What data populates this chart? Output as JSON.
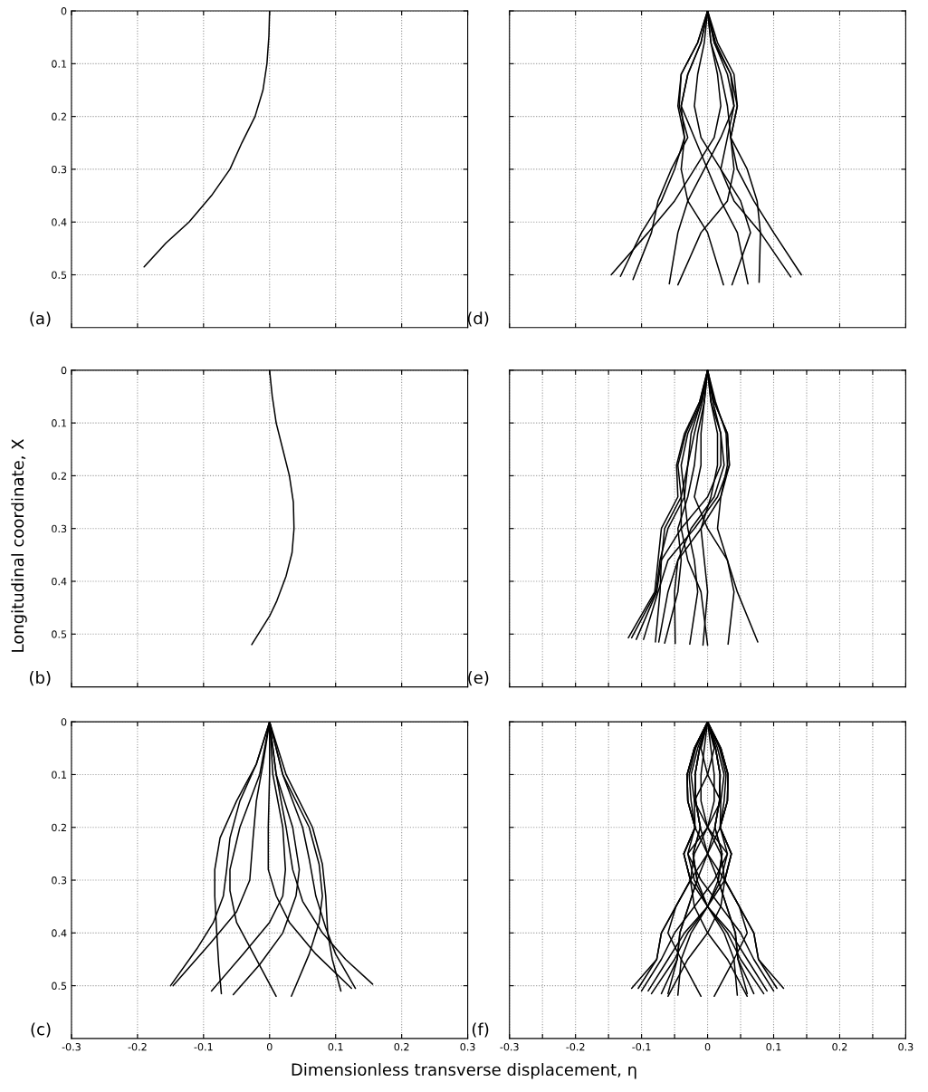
{
  "chart_data": [
    {
      "type": "line",
      "ylabel": null,
      "annotations": [
        "(a)"
      ],
      "xlim": [
        -0.3,
        0.3
      ],
      "ylim": [
        0.6,
        0
      ],
      "xticks": [
        -0.3,
        -0.2,
        -0.1,
        0,
        0.1,
        0.2,
        0.3
      ],
      "yticks": [
        0,
        0.1,
        0.2,
        0.3,
        0.4,
        0.5
      ],
      "grid": true,
      "tick_labels": "y",
      "series": [
        {
          "color": "#000000",
          "x": [
            0,
            -0.001,
            -0.004,
            -0.01,
            -0.022,
            -0.042,
            -0.06,
            -0.088,
            -0.122,
            -0.157,
            -0.19
          ],
          "values": [
            0,
            0.047,
            0.1,
            0.15,
            0.2,
            0.25,
            0.3,
            0.35,
            0.4,
            0.44,
            0.485
          ]
        }
      ]
    },
    {
      "type": "line",
      "annotations": [
        "(d)"
      ],
      "xlim": [
        -0.3,
        0.3
      ],
      "ylim": [
        0.6,
        0
      ],
      "xticks": [
        -0.3,
        -0.2,
        -0.1,
        0,
        0.1,
        0.2,
        0.3
      ],
      "yticks": [
        0,
        0.1,
        0.2,
        0.3,
        0.4,
        0.5
      ],
      "grid": true,
      "tick_labels": false,
      "series": [
        {
          "color": "#000000",
          "x": [
            0,
            0.005,
            0.015,
            0.02,
            0.01,
            -0.02,
            -0.05,
            -0.09,
            -0.146
          ],
          "values": [
            0,
            0.06,
            0.12,
            0.18,
            0.24,
            0.3,
            0.36,
            0.42,
            0.5
          ]
        },
        {
          "color": "#000000",
          "x": [
            0,
            -0.01,
            -0.03,
            -0.04,
            -0.035,
            -0.05,
            -0.07,
            -0.1,
            -0.132
          ],
          "values": [
            0,
            0.06,
            0.12,
            0.18,
            0.24,
            0.3,
            0.36,
            0.42,
            0.503
          ]
        },
        {
          "color": "#000000",
          "x": [
            0,
            -0.015,
            -0.04,
            -0.043,
            -0.03,
            -0.055,
            -0.075,
            -0.085,
            -0.113
          ],
          "values": [
            0,
            0.06,
            0.12,
            0.18,
            0.24,
            0.3,
            0.36,
            0.42,
            0.509
          ]
        },
        {
          "color": "#000000",
          "x": [
            0,
            0.01,
            0.035,
            0.04,
            0.02,
            -0.005,
            -0.03,
            -0.045,
            -0.058
          ],
          "values": [
            0,
            0.06,
            0.12,
            0.18,
            0.24,
            0.3,
            0.36,
            0.42,
            0.517
          ]
        },
        {
          "color": "#000000",
          "x": [
            0,
            0.015,
            0.04,
            0.045,
            0.035,
            0.04,
            0.03,
            -0.01,
            -0.045
          ],
          "values": [
            0,
            0.06,
            0.12,
            0.18,
            0.24,
            0.3,
            0.36,
            0.42,
            0.519
          ]
        },
        {
          "color": "#000000",
          "x": [
            0,
            -0.015,
            -0.04,
            -0.045,
            -0.035,
            -0.04,
            -0.03,
            0.0,
            0.024
          ],
          "values": [
            0,
            0.06,
            0.12,
            0.18,
            0.24,
            0.3,
            0.36,
            0.42,
            0.519
          ]
        },
        {
          "color": "#000000",
          "x": [
            0,
            -0.005,
            -0.015,
            -0.02,
            -0.01,
            0.02,
            0.05,
            0.065,
            0.037
          ],
          "values": [
            0,
            0.06,
            0.12,
            0.18,
            0.24,
            0.3,
            0.36,
            0.42,
            0.519
          ]
        },
        {
          "color": "#000000",
          "x": [
            0,
            -0.01,
            -0.03,
            -0.04,
            -0.02,
            0.0,
            0.02,
            0.045,
            0.061
          ],
          "values": [
            0,
            0.06,
            0.12,
            0.18,
            0.24,
            0.3,
            0.36,
            0.42,
            0.517
          ]
        },
        {
          "color": "#000000",
          "x": [
            0,
            0.005,
            0.02,
            0.03,
            0.035,
            0.06,
            0.075,
            0.08,
            0.078
          ],
          "values": [
            0,
            0.06,
            0.12,
            0.18,
            0.24,
            0.3,
            0.36,
            0.42,
            0.514
          ]
        },
        {
          "color": "#000000",
          "x": [
            0,
            0.01,
            0.03,
            0.04,
            0.03,
            0.02,
            0.04,
            0.08,
            0.126
          ],
          "values": [
            0,
            0.06,
            0.12,
            0.18,
            0.24,
            0.3,
            0.36,
            0.42,
            0.504
          ]
        },
        {
          "color": "#000000",
          "x": [
            0,
            0.012,
            0.035,
            0.045,
            0.035,
            0.045,
            0.07,
            0.1,
            0.142
          ],
          "values": [
            0,
            0.06,
            0.12,
            0.18,
            0.24,
            0.3,
            0.36,
            0.42,
            0.5
          ]
        }
      ]
    },
    {
      "type": "line",
      "ylabel": "Longitudinal coordinate, X",
      "annotations": [
        "(b)"
      ],
      "xlim": [
        -0.3,
        0.3
      ],
      "ylim": [
        0.6,
        0
      ],
      "xticks": [
        -0.3,
        -0.2,
        -0.1,
        0,
        0.1,
        0.2,
        0.3
      ],
      "yticks": [
        0,
        0.1,
        0.2,
        0.3,
        0.4,
        0.5
      ],
      "grid": true,
      "tick_labels": "y",
      "series": [
        {
          "color": "#000000",
          "x": [
            0,
            0.004,
            0.01,
            0.02,
            0.03,
            0.036,
            0.037,
            0.034,
            0.025,
            0.011,
            0,
            -0.027
          ],
          "values": [
            0,
            0.049,
            0.1,
            0.15,
            0.2,
            0.25,
            0.3,
            0.346,
            0.39,
            0.437,
            0.466,
            0.52
          ]
        }
      ]
    },
    {
      "type": "line",
      "annotations": [
        "(e)"
      ],
      "xlim": [
        -0.3,
        0.3
      ],
      "ylim": [
        0.6,
        0
      ],
      "xticks": [
        -0.3,
        -0.25,
        -0.2,
        -0.15,
        -0.1,
        -0.05,
        0,
        0.05,
        0.1,
        0.15,
        0.2,
        0.25,
        0.3
      ],
      "yticks": [
        0,
        0.1,
        0.2,
        0.3,
        0.4,
        0.5
      ],
      "grid": true,
      "tick_labels": false,
      "series": [
        {
          "color": "#000000",
          "x": [
            0,
            -0.012,
            -0.035,
            -0.047,
            -0.045,
            -0.07,
            -0.075,
            -0.08,
            -0.12
          ],
          "values": [
            0,
            0.06,
            0.12,
            0.18,
            0.24,
            0.3,
            0.36,
            0.42,
            0.507
          ]
        },
        {
          "color": "#000000",
          "x": [
            0,
            -0.01,
            -0.03,
            -0.04,
            -0.035,
            -0.06,
            -0.072,
            -0.078,
            -0.115
          ],
          "values": [
            0,
            0.06,
            0.12,
            0.18,
            0.24,
            0.3,
            0.36,
            0.42,
            0.507
          ]
        },
        {
          "color": "#000000",
          "x": [
            0,
            0.005,
            0.02,
            0.02,
            0.0,
            -0.04,
            -0.07,
            -0.077,
            -0.108
          ],
          "values": [
            0,
            0.06,
            0.12,
            0.18,
            0.24,
            0.3,
            0.36,
            0.42,
            0.51
          ]
        },
        {
          "color": "#000000",
          "x": [
            0,
            0.01,
            0.03,
            0.033,
            0.015,
            -0.02,
            -0.06,
            -0.075,
            -0.097
          ],
          "values": [
            0,
            0.06,
            0.12,
            0.18,
            0.24,
            0.3,
            0.36,
            0.42,
            0.51
          ]
        },
        {
          "color": "#000000",
          "x": [
            0,
            -0.012,
            -0.033,
            -0.045,
            -0.04,
            -0.065,
            -0.07,
            -0.072,
            -0.079
          ],
          "values": [
            0,
            0.06,
            0.12,
            0.18,
            0.24,
            0.3,
            0.36,
            0.42,
            0.515
          ]
        },
        {
          "color": "#000000",
          "x": [
            0,
            0.012,
            0.028,
            0.03,
            0.02,
            -0.01,
            -0.045,
            -0.06,
            -0.074
          ],
          "values": [
            0,
            0.06,
            0.12,
            0.18,
            0.24,
            0.3,
            0.36,
            0.42,
            0.515
          ]
        },
        {
          "color": "#000000",
          "x": [
            0,
            -0.005,
            -0.015,
            -0.02,
            -0.03,
            -0.045,
            -0.04,
            -0.045,
            -0.065
          ],
          "values": [
            0,
            0.06,
            0.12,
            0.18,
            0.24,
            0.3,
            0.36,
            0.42,
            0.517
          ]
        },
        {
          "color": "#000000",
          "x": [
            0,
            0.008,
            0.02,
            0.025,
            0.01,
            -0.025,
            -0.045,
            -0.05,
            -0.049
          ],
          "values": [
            0,
            0.06,
            0.12,
            0.18,
            0.24,
            0.3,
            0.36,
            0.42,
            0.518
          ]
        },
        {
          "color": "#000000",
          "x": [
            0,
            -0.01,
            -0.025,
            -0.03,
            -0.035,
            -0.03,
            -0.02,
            -0.015,
            -0.027
          ],
          "values": [
            0,
            0.06,
            0.12,
            0.18,
            0.24,
            0.3,
            0.36,
            0.42,
            0.519
          ]
        },
        {
          "color": "#000000",
          "x": [
            0,
            0.005,
            0.015,
            0.015,
            0.005,
            -0.01,
            -0.005,
            0.0,
            -0.007
          ],
          "values": [
            0,
            0.06,
            0.12,
            0.18,
            0.24,
            0.3,
            0.36,
            0.42,
            0.521
          ]
        },
        {
          "color": "#000000",
          "x": [
            0,
            -0.008,
            -0.02,
            -0.03,
            -0.04,
            -0.04,
            -0.03,
            -0.01,
            0.0
          ],
          "values": [
            0,
            0.06,
            0.12,
            0.18,
            0.24,
            0.3,
            0.36,
            0.42,
            0.521
          ]
        },
        {
          "color": "#000000",
          "x": [
            0,
            0.01,
            0.03,
            0.033,
            0.02,
            0.015,
            0.03,
            0.04,
            0.031
          ],
          "values": [
            0,
            0.06,
            0.12,
            0.18,
            0.24,
            0.3,
            0.36,
            0.42,
            0.519
          ]
        },
        {
          "color": "#000000",
          "x": [
            0,
            -0.005,
            -0.01,
            -0.01,
            -0.02,
            0.0,
            0.03,
            0.045,
            0.076
          ],
          "values": [
            0,
            0.06,
            0.12,
            0.18,
            0.24,
            0.3,
            0.36,
            0.42,
            0.515
          ]
        }
      ]
    },
    {
      "type": "line",
      "xlabel": "Dimensionless transverse displacement, η",
      "annotations": [
        "(c)"
      ],
      "xlim": [
        -0.3,
        0.3
      ],
      "ylim": [
        0.6,
        0
      ],
      "xticks": [
        -0.3,
        -0.2,
        -0.1,
        0,
        0.1,
        0.2,
        0.3
      ],
      "yticks": [
        0,
        0.1,
        0.2,
        0.3,
        0.4,
        0.5
      ],
      "grid": true,
      "series": [
        {
          "color": "#000000",
          "x": [
            0,
            -0.02,
            -0.05,
            -0.075,
            -0.083,
            -0.083,
            -0.08,
            -0.077,
            -0.073
          ],
          "values": [
            0,
            0.08,
            0.15,
            0.22,
            0.28,
            0.33,
            0.4,
            0.46,
            0.515
          ]
        },
        {
          "color": "#000000",
          "x": [
            0,
            -0.02,
            -0.045,
            -0.06,
            -0.065,
            -0.07,
            -0.085,
            -0.11,
            -0.15
          ],
          "values": [
            0,
            0.08,
            0.15,
            0.22,
            0.28,
            0.33,
            0.38,
            0.43,
            0.5
          ]
        },
        {
          "color": "#000000",
          "x": [
            0,
            -0.01,
            -0.02,
            -0.025,
            -0.03,
            -0.05,
            -0.09,
            -0.146
          ],
          "values": [
            0,
            0.08,
            0.15,
            0.22,
            0.3,
            0.36,
            0.42,
            0.5
          ]
        },
        {
          "color": "#000000",
          "x": [
            0,
            0.005,
            0.02,
            0.024,
            0.02,
            0.0,
            -0.04,
            -0.088
          ],
          "values": [
            0,
            0.1,
            0.2,
            0.28,
            0.33,
            0.38,
            0.44,
            0.51
          ]
        },
        {
          "color": "#000000",
          "x": [
            0,
            0.01,
            0.035,
            0.045,
            0.04,
            0.02,
            -0.015,
            -0.055
          ],
          "values": [
            0,
            0.1,
            0.2,
            0.28,
            0.33,
            0.4,
            0.46,
            0.517
          ]
        },
        {
          "color": "#000000",
          "x": [
            0,
            -0.015,
            -0.045,
            -0.06,
            -0.06,
            -0.05,
            -0.02,
            0.01
          ],
          "values": [
            0,
            0.1,
            0.2,
            0.28,
            0.32,
            0.38,
            0.45,
            0.52
          ]
        },
        {
          "color": "#000000",
          "x": [
            0,
            0.02,
            0.06,
            0.075,
            0.08,
            0.075,
            0.06,
            0.033
          ],
          "values": [
            0,
            0.1,
            0.2,
            0.27,
            0.33,
            0.38,
            0.44,
            0.52
          ]
        },
        {
          "color": "#000000",
          "x": [
            0,
            0.025,
            0.065,
            0.08,
            0.085,
            0.088,
            0.095,
            0.108
          ],
          "values": [
            0,
            0.1,
            0.2,
            0.27,
            0.33,
            0.4,
            0.45,
            0.51
          ]
        },
        {
          "color": "#000000",
          "x": [
            0,
            0,
            -0.002,
            -0.002,
            0.01,
            0.03,
            0.07,
            0.124
          ],
          "values": [
            0,
            0.1,
            0.2,
            0.28,
            0.33,
            0.38,
            0.44,
            0.505
          ]
        },
        {
          "color": "#000000",
          "x": [
            0,
            0.02,
            0.05,
            0.06,
            0.07,
            0.085,
            0.1,
            0.13
          ],
          "values": [
            0,
            0.1,
            0.2,
            0.26,
            0.33,
            0.39,
            0.44,
            0.505
          ]
        },
        {
          "color": "#000000",
          "x": [
            0,
            0.01,
            0.025,
            0.035,
            0.05,
            0.08,
            0.115,
            0.156
          ],
          "values": [
            0,
            0.1,
            0.2,
            0.28,
            0.34,
            0.4,
            0.45,
            0.497
          ]
        }
      ]
    },
    {
      "type": "line",
      "annotations": [
        "(f)"
      ],
      "xlim": [
        -0.3,
        0.3
      ],
      "ylim": [
        0.6,
        0
      ],
      "xticks": [
        -0.3,
        {
          "value": -0.25,
          "label": null
        },
        -0.2,
        {
          "value": -0.15,
          "label": null
        },
        -0.1,
        {
          "value": -0.05,
          "label": null
        },
        0,
        {
          "value": 0.05,
          "label": null
        },
        0.1,
        {
          "value": 0.15,
          "label": null
        },
        0.2,
        {
          "value": 0.25,
          "label": null
        },
        0.3
      ],
      "yticks": [
        0,
        0.1,
        0.2,
        0.3,
        0.4,
        0.5
      ],
      "grid": true,
      "tick_labels": "x",
      "series": [
        {
          "color": "#000000",
          "x": [
            0,
            0.02,
            0.031,
            0.03,
            0.019,
            0.036,
            0.026,
            0.048,
            0.07,
            0.077,
            0.115
          ],
          "values": [
            0,
            0.05,
            0.1,
            0.15,
            0.2,
            0.25,
            0.3,
            0.35,
            0.4,
            0.45,
            0.505
          ]
        },
        {
          "color": "#000000",
          "x": [
            0,
            0.012,
            0.019,
            0.018,
            0.011,
            0.022,
            0.016,
            0.029,
            0.042,
            0.046,
            0.07
          ],
          "values": [
            0,
            0.05,
            0.1,
            0.15,
            0.2,
            0.25,
            0.3,
            0.35,
            0.4,
            0.45,
            0.515
          ]
        },
        {
          "color": "#000000",
          "x": [
            0,
            0.02,
            0.031,
            0.03,
            0.019,
            0,
            -0.026,
            -0.048,
            -0.07,
            -0.077,
            -0.105
          ],
          "values": [
            0,
            0.05,
            0.1,
            0.15,
            0.2,
            0.25,
            0.3,
            0.35,
            0.4,
            0.45,
            0.505
          ]
        },
        {
          "color": "#000000",
          "x": [
            0,
            0.012,
            0.019,
            0.018,
            0.011,
            0,
            -0.016,
            -0.029,
            -0.042,
            -0.046,
            -0.06
          ],
          "values": [
            0,
            0.05,
            0.1,
            0.15,
            0.2,
            0.25,
            0.3,
            0.35,
            0.4,
            0.45,
            0.515
          ]
        },
        {
          "color": "#000000",
          "x": [
            0,
            0.02,
            0.031,
            0.03,
            0.019,
            0.036,
            0.026,
            0.0,
            -0.035,
            -0.06,
            -0.09
          ],
          "values": [
            0,
            0.05,
            0.1,
            0.15,
            0.2,
            0.25,
            0.3,
            0.35,
            0.4,
            0.45,
            0.51
          ]
        },
        {
          "color": "#000000",
          "x": [
            0,
            0.012,
            0.019,
            0.018,
            0.011,
            0.022,
            0.016,
            0.0,
            -0.025,
            -0.04,
            -0.045
          ],
          "values": [
            0,
            0.05,
            0.1,
            0.15,
            0.2,
            0.25,
            0.3,
            0.35,
            0.4,
            0.45,
            0.518
          ]
        },
        {
          "color": "#000000",
          "x": [
            0,
            0.01,
            0.0,
            -0.02,
            -0.019,
            -0.036,
            -0.026,
            -0.048,
            -0.06,
            -0.04,
            -0.01
          ],
          "values": [
            0,
            0.05,
            0.1,
            0.15,
            0.2,
            0.25,
            0.3,
            0.35,
            0.4,
            0.45,
            0.52
          ]
        },
        {
          "color": "#000000",
          "x": [
            0,
            0.005,
            0.01,
            0.01,
            0.0,
            -0.02,
            -0.026,
            -0.02,
            0.0,
            0.03,
            0.06
          ],
          "values": [
            0,
            0.05,
            0.1,
            0.15,
            0.2,
            0.25,
            0.3,
            0.35,
            0.4,
            0.45,
            0.52
          ]
        },
        {
          "color": "#000000",
          "x": [
            0,
            0.015,
            0.025,
            0.02,
            0.0,
            -0.03,
            -0.02,
            0.0,
            0.03,
            0.05,
            0.085
          ],
          "values": [
            0,
            0.05,
            0.1,
            0.15,
            0.2,
            0.25,
            0.3,
            0.35,
            0.4,
            0.45,
            0.515
          ]
        },
        {
          "color": "#000000",
          "x": [
            0,
            0.018,
            0.028,
            0.025,
            0.019,
            0.03,
            0.01,
            -0.02,
            -0.05,
            -0.07,
            -0.1
          ],
          "values": [
            0,
            0.05,
            0.1,
            0.15,
            0.2,
            0.25,
            0.3,
            0.35,
            0.4,
            0.45,
            0.51
          ]
        },
        {
          "color": "#000000",
          "x": [
            0,
            -0.02,
            -0.031,
            -0.03,
            -0.019,
            -0.036,
            -0.026,
            -0.048,
            -0.07,
            -0.077,
            -0.115
          ],
          "values": [
            0,
            0.05,
            0.1,
            0.15,
            0.2,
            0.25,
            0.3,
            0.35,
            0.4,
            0.45,
            0.505
          ]
        },
        {
          "color": "#000000",
          "x": [
            0,
            -0.012,
            -0.019,
            -0.018,
            -0.011,
            -0.022,
            -0.016,
            -0.029,
            -0.042,
            -0.046,
            -0.07
          ],
          "values": [
            0,
            0.05,
            0.1,
            0.15,
            0.2,
            0.25,
            0.3,
            0.35,
            0.4,
            0.45,
            0.515
          ]
        },
        {
          "color": "#000000",
          "x": [
            0,
            -0.02,
            -0.031,
            -0.03,
            -0.019,
            0,
            0.026,
            0.048,
            0.07,
            0.077,
            0.105
          ],
          "values": [
            0,
            0.05,
            0.1,
            0.15,
            0.2,
            0.25,
            0.3,
            0.35,
            0.4,
            0.45,
            0.505
          ]
        },
        {
          "color": "#000000",
          "x": [
            0,
            -0.012,
            -0.019,
            -0.018,
            -0.011,
            0,
            0.016,
            0.029,
            0.042,
            0.046,
            0.06
          ],
          "values": [
            0,
            0.05,
            0.1,
            0.15,
            0.2,
            0.25,
            0.3,
            0.35,
            0.4,
            0.45,
            0.515
          ]
        },
        {
          "color": "#000000",
          "x": [
            0,
            -0.02,
            -0.031,
            -0.03,
            -0.019,
            -0.036,
            -0.026,
            0.0,
            0.035,
            0.06,
            0.09
          ],
          "values": [
            0,
            0.05,
            0.1,
            0.15,
            0.2,
            0.25,
            0.3,
            0.35,
            0.4,
            0.45,
            0.51
          ]
        },
        {
          "color": "#000000",
          "x": [
            0,
            -0.012,
            -0.019,
            -0.018,
            -0.011,
            -0.022,
            -0.016,
            0.0,
            0.025,
            0.04,
            0.045
          ],
          "values": [
            0,
            0.05,
            0.1,
            0.15,
            0.2,
            0.25,
            0.3,
            0.35,
            0.4,
            0.45,
            0.518
          ]
        },
        {
          "color": "#000000",
          "x": [
            0,
            -0.01,
            0.0,
            0.02,
            0.019,
            0.036,
            0.026,
            0.048,
            0.06,
            0.04,
            0.01
          ],
          "values": [
            0,
            0.05,
            0.1,
            0.15,
            0.2,
            0.25,
            0.3,
            0.35,
            0.4,
            0.45,
            0.52
          ]
        },
        {
          "color": "#000000",
          "x": [
            0,
            -0.005,
            -0.01,
            -0.01,
            0.0,
            0.02,
            0.026,
            0.02,
            0.0,
            -0.03,
            -0.06
          ],
          "values": [
            0,
            0.05,
            0.1,
            0.15,
            0.2,
            0.25,
            0.3,
            0.35,
            0.4,
            0.45,
            0.52
          ]
        },
        {
          "color": "#000000",
          "x": [
            0,
            -0.015,
            -0.025,
            -0.02,
            0.0,
            0.03,
            0.02,
            0.0,
            -0.03,
            -0.05,
            -0.085
          ],
          "values": [
            0,
            0.05,
            0.1,
            0.15,
            0.2,
            0.25,
            0.3,
            0.35,
            0.4,
            0.45,
            0.515
          ]
        },
        {
          "color": "#000000",
          "x": [
            0,
            -0.018,
            -0.028,
            -0.025,
            -0.019,
            -0.03,
            -0.01,
            0.02,
            0.05,
            0.07,
            0.1
          ],
          "values": [
            0,
            0.05,
            0.1,
            0.15,
            0.2,
            0.25,
            0.3,
            0.35,
            0.4,
            0.45,
            0.51
          ]
        }
      ]
    }
  ]
}
